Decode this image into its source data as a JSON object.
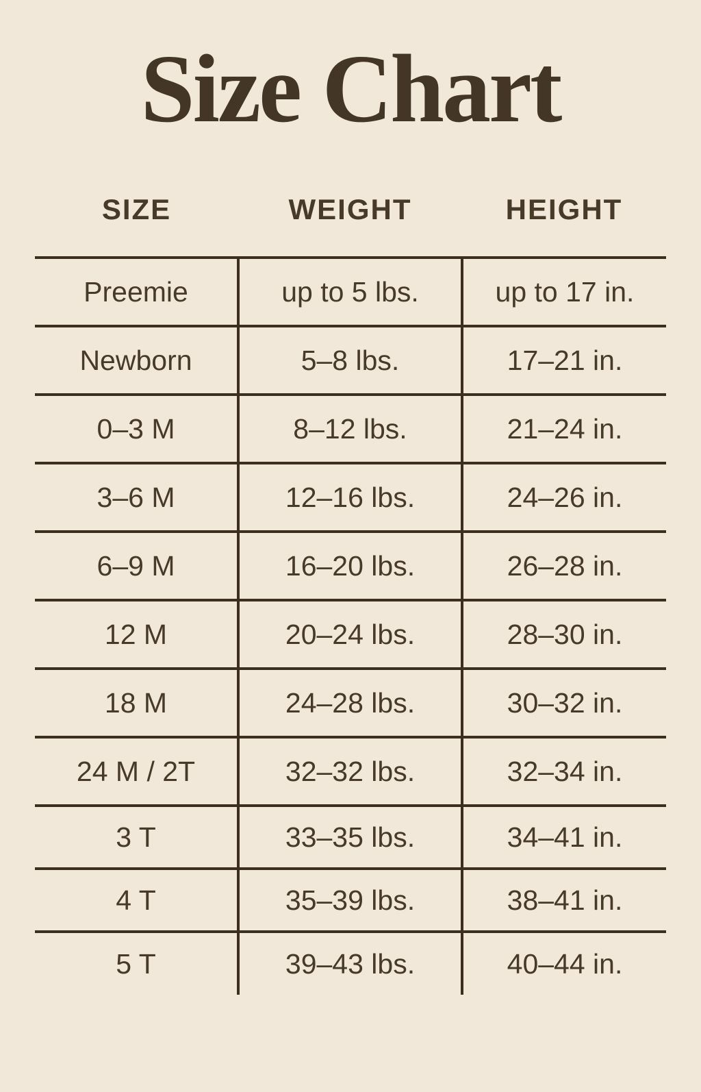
{
  "title": "Size Chart",
  "colors": {
    "background": "#f1e8d9",
    "title_ink": "#443627",
    "text_ink": "#473a28",
    "line": "#3c2f20"
  },
  "chart_data": {
    "type": "table",
    "title": "Size Chart",
    "columns": [
      "SIZE",
      "WEIGHT",
      "HEIGHT"
    ],
    "rows": [
      [
        "Preemie",
        "up to 5 lbs.",
        "up to 17 in."
      ],
      [
        "Newborn",
        "5–8 lbs.",
        "17–21 in."
      ],
      [
        "0–3 M",
        "8–12 lbs.",
        "21–24 in."
      ],
      [
        "3–6 M",
        "12–16 lbs.",
        "24–26 in."
      ],
      [
        "6–9 M",
        "16–20 lbs.",
        "26–28 in."
      ],
      [
        "12 M",
        "20–24 lbs.",
        "28–30 in."
      ],
      [
        "18 M",
        "24–28 lbs.",
        "30–32 in."
      ],
      [
        "24 M / 2T",
        "32–32 lbs.",
        "32–34 in."
      ],
      [
        "3 T",
        "33–35 lbs.",
        "34–41 in."
      ],
      [
        "4 T",
        "35–39 lbs.",
        "38–41 in."
      ],
      [
        "5 T",
        "39–43 lbs.",
        "40–44 in."
      ]
    ]
  }
}
